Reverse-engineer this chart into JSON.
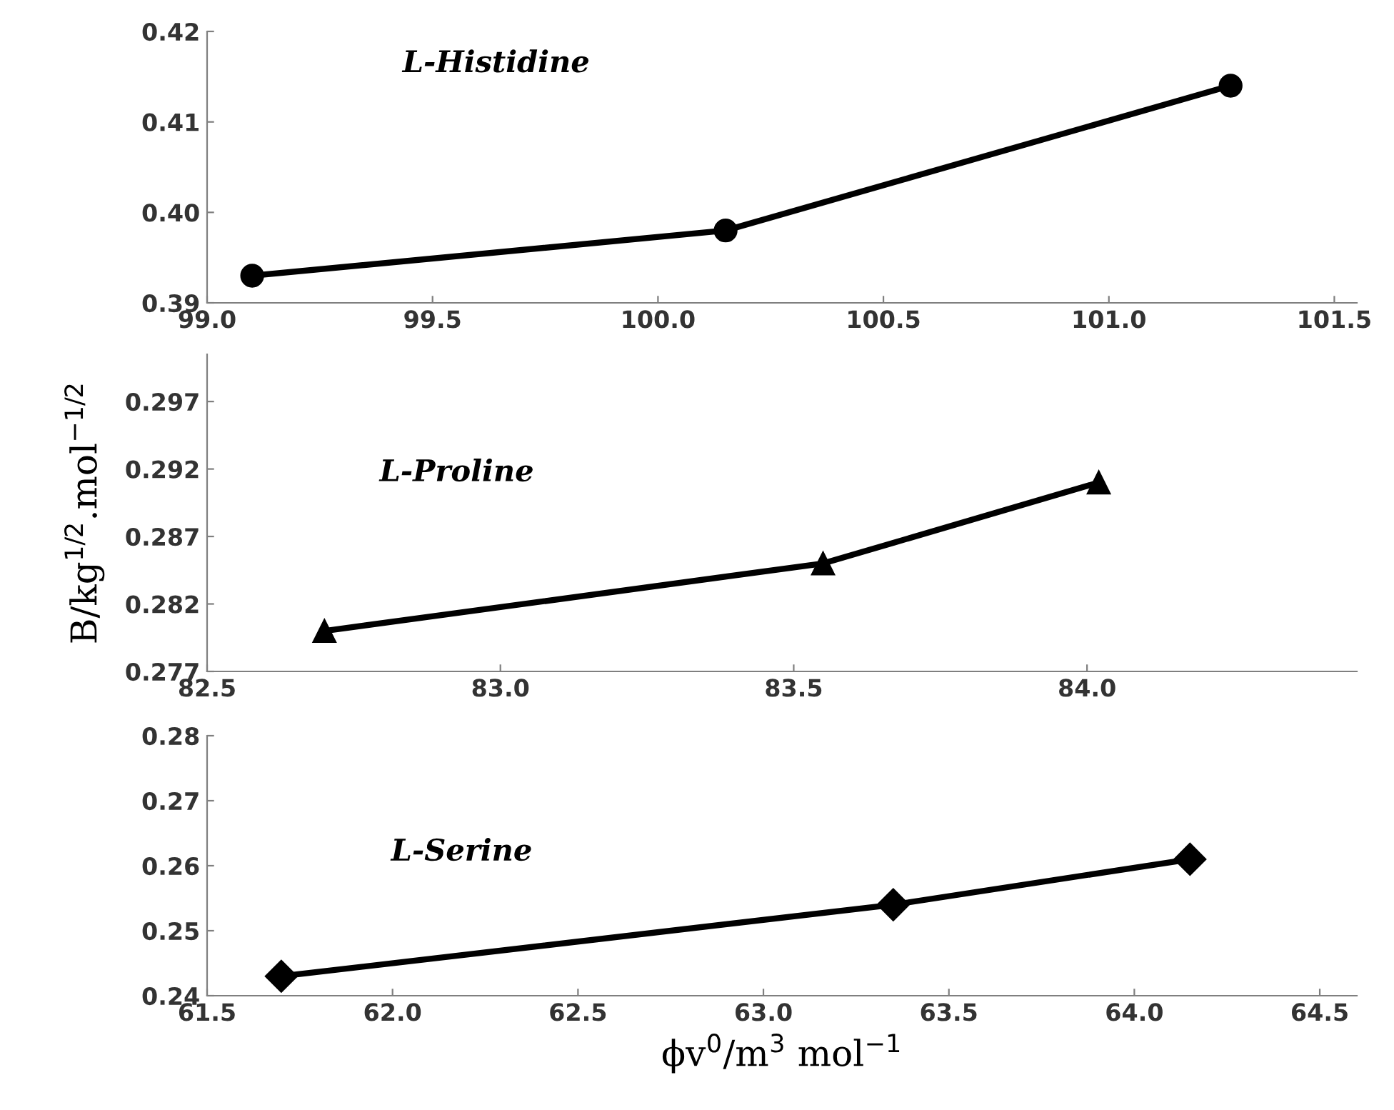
{
  "chart_data": [
    {
      "type": "line",
      "annotations": [
        "L-Histidine"
      ],
      "x": [
        99.1,
        100.15,
        101.27
      ],
      "values": [
        0.393,
        0.398,
        0.414
      ],
      "color": "#000000",
      "marker": "circle",
      "line_style": "solid",
      "grid": false,
      "legend": false,
      "xlim": [
        99.0,
        101.55
      ],
      "xticks": [
        {
          "value": 99.0,
          "label": "99.0"
        },
        {
          "value": 99.5,
          "label": "99.5"
        },
        {
          "value": 100.0,
          "label": "100.0"
        },
        {
          "value": 100.5,
          "label": "100.5"
        },
        {
          "value": 101.0,
          "label": "101.0"
        },
        {
          "value": 101.5,
          "label": "101.5"
        }
      ],
      "ylim": [
        0.39,
        0.42
      ],
      "yticks": [
        {
          "value": 0.39,
          "label": "0.39"
        },
        {
          "value": 0.4,
          "label": "0.40"
        },
        {
          "value": 0.41,
          "label": "0.41"
        },
        {
          "value": 0.42,
          "label": "0.42"
        }
      ]
    },
    {
      "type": "line",
      "ylabel": "B/kg$^{1/2}$.mol$^{−1/2}$",
      "annotations": [
        "L-Proline"
      ],
      "x": [
        82.7,
        83.55,
        84.02
      ],
      "values": [
        0.28,
        0.285,
        0.291
      ],
      "color": "#000000",
      "marker": "triangle",
      "line_style": "solid",
      "grid": false,
      "legend": false,
      "xlim": [
        82.5,
        84.46
      ],
      "xticks": [
        {
          "value": 82.5,
          "label": "82.5"
        },
        {
          "value": 83.0,
          "label": "83.0"
        },
        {
          "value": 83.5,
          "label": "83.5"
        },
        {
          "value": 84.0,
          "label": "84.0"
        }
      ],
      "ylim": [
        0.277,
        0.3005
      ],
      "yticks": [
        0.277,
        0.282,
        0.287,
        0.292,
        0.297
      ]
    },
    {
      "type": "line",
      "xlabel": "ϕv$^{0}$/m$^{3}$ mol$^{−1}$",
      "annotations": [
        "L-Serine"
      ],
      "x": [
        61.7,
        63.35,
        64.15
      ],
      "values": [
        0.243,
        0.254,
        0.261
      ],
      "color": "#000000",
      "marker": "diamond",
      "line_style": "solid",
      "grid": false,
      "legend": false,
      "xlim": [
        61.5,
        64.6
      ],
      "xticks": [
        {
          "value": 61.5,
          "label": "61.5"
        },
        {
          "value": 62.0,
          "label": "62.0"
        },
        {
          "value": 62.5,
          "label": "62.5"
        },
        {
          "value": 63.0,
          "label": "63.0"
        },
        {
          "value": 63.5,
          "label": "63.5"
        },
        {
          "value": 64.0,
          "label": "64.0"
        },
        {
          "value": 64.5,
          "label": "64.5"
        }
      ],
      "ylim": [
        0.24,
        0.28
      ],
      "yticks": [
        {
          "value": 0.24,
          "label": "0.24"
        },
        {
          "value": 0.25,
          "label": "0.25"
        },
        {
          "value": 0.26,
          "label": "0.26"
        },
        {
          "value": 0.27,
          "label": "0.27"
        },
        {
          "value": 0.28,
          "label": "0.28"
        }
      ]
    }
  ]
}
